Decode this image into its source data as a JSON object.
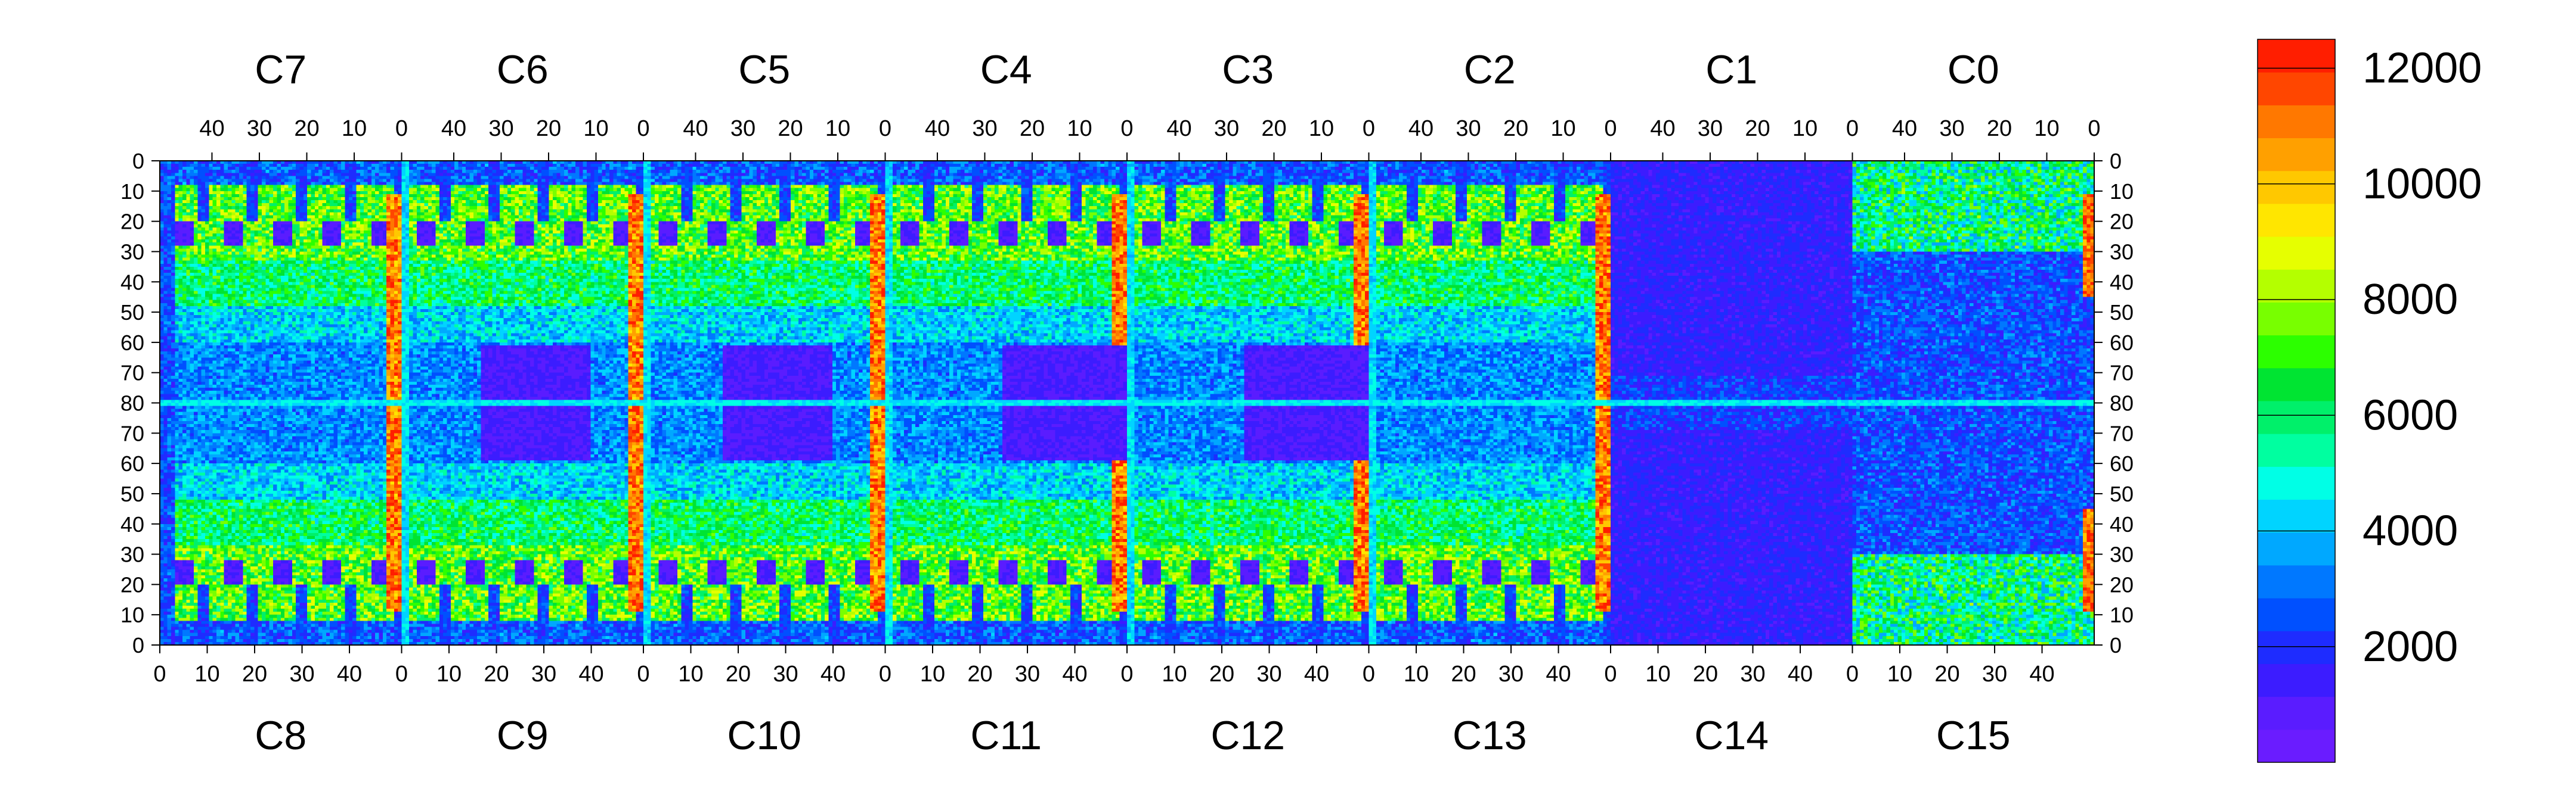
{
  "chart_data": {
    "type": "heatmap",
    "title": "",
    "xlabel": "",
    "ylabel": "",
    "chips_top": [
      "C7",
      "C6",
      "C5",
      "C4",
      "C3",
      "C2",
      "C1",
      "C0"
    ],
    "chips_bottom": [
      "C8",
      "C9",
      "C10",
      "C11",
      "C12",
      "C13",
      "C14",
      "C15"
    ],
    "top_tick_labels": [
      "40",
      "30",
      "20",
      "10",
      "0"
    ],
    "bottom_tick_labels": [
      "0",
      "10",
      "20",
      "30",
      "40"
    ],
    "y_tick_labels": [
      "0",
      "10",
      "20",
      "30",
      "40",
      "50",
      "60",
      "70",
      "80",
      "70",
      "60",
      "50",
      "40",
      "30",
      "20",
      "10",
      "0"
    ],
    "colorbar": {
      "min": 0,
      "max": 12500,
      "tick_values": [
        2000,
        4000,
        6000,
        8000,
        10000,
        12000
      ],
      "tick_labels": [
        "2000",
        "4000",
        "6000",
        "8000",
        "10000",
        "12000"
      ]
    },
    "grid": false,
    "legend": "colorbar-right"
  }
}
